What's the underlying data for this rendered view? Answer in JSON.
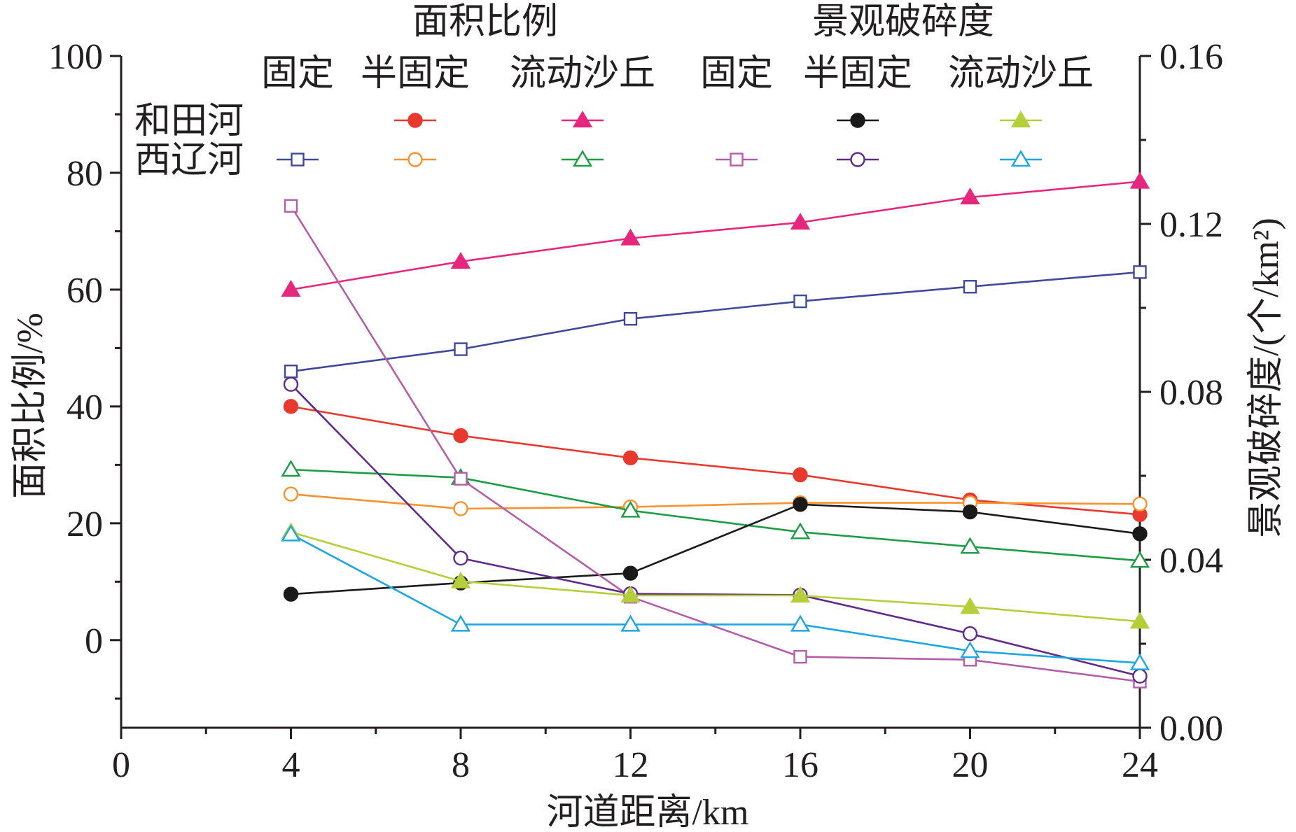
{
  "chart_data": {
    "type": "line",
    "x": [
      4,
      8,
      12,
      16,
      20,
      24
    ],
    "xlabel": "河道距离/km",
    "ylabel_left": "面积比例/%",
    "ylabel_right": "景观破碎度/(个/km²)",
    "xlim": [
      0,
      24
    ],
    "x_ticks": [
      "0",
      "4",
      "8",
      "12",
      "16",
      "20",
      "24"
    ],
    "ylim_left": [
      -15,
      100
    ],
    "y_ticks_left": [
      "0",
      "20",
      "40",
      "60",
      "80",
      "100"
    ],
    "ylim_right": [
      0.0,
      0.16
    ],
    "y_ticks_right": [
      "0.00",
      "0.04",
      "0.08",
      "0.12",
      "0.16"
    ],
    "grid": false,
    "legend": {
      "group_headers": [
        "面积比例",
        "景观破碎度"
      ],
      "column_headers": [
        "固定",
        "半固定",
        "流动沙丘",
        "固定",
        "半固定",
        "流动沙丘"
      ],
      "row_headers": [
        "和田河",
        "西辽河"
      ]
    },
    "series": [
      {
        "river": "西辽河",
        "group": "面积比例",
        "column": "固定",
        "axis": "left",
        "color": "#3f4a9a",
        "marker": "square",
        "filled": false,
        "values": [
          46,
          49.8,
          55,
          58,
          60.5,
          63
        ]
      },
      {
        "river": "和田河",
        "group": "面积比例",
        "column": "半固定",
        "axis": "left",
        "color": "#e8392f",
        "marker": "circle",
        "filled": true,
        "values": [
          40,
          35,
          31.2,
          28.3,
          24,
          21.5
        ]
      },
      {
        "river": "西辽河",
        "group": "面积比例",
        "column": "半固定",
        "axis": "left",
        "color": "#f7922e",
        "marker": "circle",
        "filled": false,
        "values": [
          25,
          22.5,
          22.8,
          23.5,
          23.5,
          23.3
        ]
      },
      {
        "river": "和田河",
        "group": "面积比例",
        "column": "流动沙丘",
        "axis": "left",
        "color": "#e6277d",
        "marker": "triangle",
        "filled": true,
        "values": [
          60,
          64.8,
          68.8,
          71.5,
          75.8,
          78.5
        ]
      },
      {
        "river": "西辽河",
        "group": "面积比例",
        "column": "流动沙丘",
        "axis": "left",
        "color": "#1d9c45",
        "marker": "triangle",
        "filled": false,
        "values": [
          29.2,
          27.8,
          22.2,
          18.5,
          16,
          13.6
        ]
      },
      {
        "river": "和田河",
        "group": "景观破碎度",
        "column": "半固定",
        "axis": "right",
        "color": "#1a1a1a",
        "marker": "circle",
        "filled": true,
        "values": [
          0.0318,
          0.0345,
          0.0368,
          0.0532,
          0.0514,
          0.0462
        ]
      },
      {
        "river": "西辽河",
        "group": "景观破碎度",
        "column": "固定",
        "axis": "right",
        "color": "#b35fa8",
        "marker": "square",
        "filled": false,
        "values": [
          0.1243,
          0.0593,
          0.0312,
          0.0169,
          0.0162,
          0.011
        ]
      },
      {
        "river": "西辽河",
        "group": "景观破碎度",
        "column": "半固定",
        "axis": "right",
        "color": "#612a89",
        "marker": "circle",
        "filled": false,
        "values": [
          0.0818,
          0.0404,
          0.0319,
          0.0316,
          0.0224,
          0.0123
        ]
      },
      {
        "river": "和田河",
        "group": "景观破碎度",
        "column": "流动沙丘",
        "axis": "right",
        "color": "#b5cf3a",
        "marker": "triangle",
        "filled": true,
        "values": [
          0.0466,
          0.0349,
          0.0315,
          0.0315,
          0.0288,
          0.0253
        ]
      },
      {
        "river": "西辽河",
        "group": "景观破碎度",
        "column": "流动沙丘",
        "axis": "right",
        "color": "#1ea6e0",
        "marker": "triangle",
        "filled": false,
        "values": [
          0.0461,
          0.0246,
          0.0246,
          0.0246,
          0.0183,
          0.0154
        ]
      }
    ]
  }
}
